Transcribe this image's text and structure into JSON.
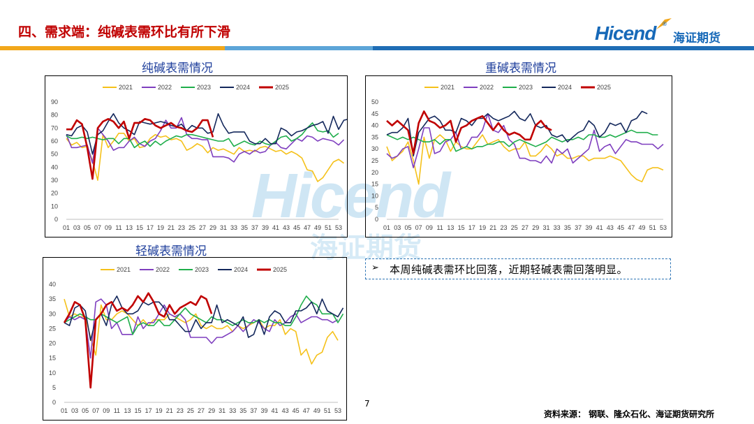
{
  "header": {
    "title": "四、需求端：纯碱表需环比有所下滑",
    "logo_en": "Hicend",
    "logo_reg": "®",
    "logo_cn": "海证期货"
  },
  "watermark": {
    "en": "Hicend",
    "cn": "海证期货",
    "reg": "®"
  },
  "colors": {
    "title_red": "#c00000",
    "brand_blue": "#1769b8",
    "band_orange": "#f2a71b",
    "band_blue": "#1f6db5",
    "band_lightblue": "#5da5d8",
    "y2021": "#f5c11a",
    "y2022": "#7f3fbf",
    "y2023": "#1fae4b",
    "y2024": "#14285c",
    "y2025": "#c00000"
  },
  "note": {
    "arrow": "➢",
    "text": "本周纯碱表需环比回落，近期轻碱表需回落明显。"
  },
  "page_number": "7",
  "source": "资料来源：  钢联、隆众石化、海证期货研究所",
  "chart_data": [
    {
      "id": "soda",
      "type": "line",
      "title": "纯碱表需情况",
      "ylim": [
        0,
        90
      ],
      "yticks": [
        0,
        10,
        20,
        30,
        40,
        50,
        60,
        70,
        80,
        90
      ],
      "xticks": [
        "01",
        "03",
        "05",
        "07",
        "09",
        "11",
        "13",
        "15",
        "17",
        "19",
        "21",
        "23",
        "25",
        "27",
        "29",
        "31",
        "33",
        "35",
        "37",
        "39",
        "41",
        "43",
        "45",
        "47",
        "49",
        "51",
        "53"
      ],
      "series": [
        {
          "name": "2021",
          "color": "#f5c11a",
          "values": [
            62,
            57,
            59,
            55,
            56,
            45,
            30,
            65,
            55,
            60,
            66,
            66,
            60,
            62,
            55,
            56,
            62,
            65,
            63,
            64,
            61,
            62,
            60,
            53,
            55,
            58,
            56,
            51,
            55,
            53,
            54,
            52,
            50,
            55,
            52,
            53,
            52,
            55,
            56,
            54,
            52,
            53,
            50,
            52,
            50,
            47,
            38,
            37,
            29,
            32,
            38,
            44,
            46,
            43
          ]
        },
        {
          "name": "2022",
          "color": "#7f3fbf",
          "values": [
            65,
            55,
            55,
            56,
            57,
            43,
            70,
            65,
            60,
            53,
            55,
            55,
            60,
            63,
            58,
            56,
            60,
            62,
            68,
            76,
            70,
            70,
            78,
            65,
            62,
            62,
            61,
            61,
            48,
            48,
            48,
            47,
            44,
            50,
            52,
            50,
            53,
            51,
            52,
            57,
            59,
            55,
            54,
            58,
            62,
            60,
            64,
            63,
            60,
            62,
            61,
            60,
            57,
            61
          ]
        },
        {
          "name": "2023",
          "color": "#1fae4b",
          "values": [
            64,
            62,
            62,
            63,
            62,
            63,
            62,
            61,
            62,
            62,
            58,
            62,
            62,
            55,
            58,
            60,
            56,
            60,
            57,
            60,
            62,
            64,
            63,
            65,
            65,
            64,
            63,
            62,
            61,
            60,
            60,
            62,
            56,
            58,
            60,
            58,
            57,
            60,
            58,
            57,
            60,
            63,
            64,
            60,
            62,
            65,
            70,
            74,
            68,
            67,
            68,
            63,
            66
          ]
        },
        {
          "name": "2024",
          "color": "#14285c",
          "values": [
            65,
            64,
            70,
            72,
            67,
            50,
            65,
            68,
            75,
            81,
            74,
            70,
            68,
            65,
            75,
            74,
            73,
            74,
            75,
            74,
            72,
            71,
            73,
            68,
            72,
            70,
            70,
            66,
            67,
            81,
            72,
            66,
            67,
            67,
            67,
            60,
            58,
            58,
            62,
            58,
            58,
            70,
            68,
            64,
            67,
            68,
            70,
            72,
            73,
            75,
            66,
            79,
            69,
            76,
            77
          ]
        },
        {
          "name": "2025",
          "color": "#c00000",
          "values": [
            69,
            69,
            76,
            73,
            55,
            31,
            70,
            75,
            77,
            75,
            70,
            75,
            62,
            74,
            74,
            77,
            76,
            72,
            70,
            72,
            74,
            71,
            70,
            68,
            67,
            70,
            76,
            76,
            63
          ]
        }
      ]
    },
    {
      "id": "heavy",
      "type": "line",
      "title": "重碱表需情况",
      "ylim": [
        0,
        50
      ],
      "yticks": [
        0,
        5,
        10,
        15,
        20,
        25,
        30,
        35,
        40,
        45,
        50
      ],
      "xticks": [
        "01",
        "03",
        "05",
        "07",
        "09",
        "11",
        "13",
        "15",
        "17",
        "19",
        "21",
        "23",
        "25",
        "27",
        "29",
        "31",
        "33",
        "35",
        "37",
        "39",
        "41",
        "43",
        "45",
        "47",
        "49",
        "51",
        "53"
      ],
      "series": [
        {
          "name": "2021",
          "color": "#f5c11a",
          "values": [
            31,
            25,
            27,
            29,
            33,
            25,
            15,
            35,
            26,
            34,
            36,
            34,
            29,
            33,
            31,
            30,
            30,
            33,
            36,
            32,
            33,
            34,
            31,
            29,
            30,
            30,
            33,
            27,
            27,
            29,
            32,
            30,
            27,
            28,
            26,
            26,
            27,
            27,
            25,
            26,
            26,
            26,
            27,
            26,
            25,
            22,
            19,
            17,
            16,
            21,
            22,
            22,
            21
          ]
        },
        {
          "name": "2022",
          "color": "#7f3fbf",
          "values": [
            28,
            26,
            27,
            30,
            31,
            22,
            30,
            39,
            39,
            28,
            29,
            33,
            34,
            37,
            30,
            31,
            35,
            35,
            38,
            45,
            38,
            37,
            40,
            34,
            32,
            26,
            26,
            25,
            25,
            24,
            27,
            24,
            30,
            28,
            30,
            24,
            26,
            28,
            30,
            38,
            29,
            31,
            32,
            28,
            31,
            34,
            33,
            33,
            32,
            32,
            32,
            30,
            32
          ]
        },
        {
          "name": "2023",
          "color": "#1fae4b",
          "values": [
            36,
            35,
            34,
            35,
            34,
            35,
            34,
            33,
            33,
            34,
            32,
            34,
            34,
            29,
            30,
            31,
            30,
            31,
            31,
            32,
            32,
            33,
            33,
            31,
            33,
            34,
            33,
            32,
            31,
            32,
            33,
            35,
            34,
            33,
            34,
            34,
            35,
            34,
            36,
            36,
            35,
            35,
            36,
            35,
            36,
            37,
            38,
            37,
            37,
            37,
            36,
            36
          ]
        },
        {
          "name": "2024",
          "color": "#14285c",
          "values": [
            36,
            37,
            37,
            39,
            43,
            27,
            37,
            40,
            43,
            44,
            42,
            38,
            38,
            37,
            43,
            42,
            40,
            43,
            43,
            45,
            43,
            42,
            43,
            44,
            46,
            43,
            42,
            45,
            40,
            39,
            40,
            36,
            35,
            36,
            33,
            35,
            37,
            38,
            42,
            40,
            35,
            37,
            41,
            40,
            41,
            37,
            42,
            43,
            46,
            45
          ]
        },
        {
          "name": "2025",
          "color": "#c00000",
          "values": [
            42,
            40,
            42,
            40,
            38,
            28,
            41,
            46,
            42,
            41,
            39,
            40,
            42,
            33,
            39,
            40,
            42,
            43,
            44,
            41,
            38,
            41,
            38,
            36,
            37,
            36,
            34,
            34,
            40,
            42,
            39,
            38
          ]
        }
      ]
    },
    {
      "id": "light",
      "type": "line",
      "title": "轻碱表需情况",
      "ylim": [
        0,
        40
      ],
      "yticks": [
        0,
        5,
        10,
        15,
        20,
        25,
        30,
        35,
        40
      ],
      "xticks": [
        "01",
        "03",
        "05",
        "07",
        "09",
        "11",
        "13",
        "15",
        "17",
        "19",
        "21",
        "23",
        "25",
        "27",
        "29",
        "31",
        "33",
        "35",
        "37",
        "39",
        "41",
        "43",
        "45",
        "47",
        "49",
        "51",
        "53"
      ],
      "series": [
        {
          "name": "2021",
          "color": "#f5c11a",
          "values": [
            35,
            29,
            30,
            29,
            29,
            22,
            16,
            33,
            28,
            28,
            30,
            31,
            30,
            28,
            26,
            28,
            26,
            28,
            28,
            28,
            30,
            29,
            28,
            27,
            28,
            30,
            26,
            25,
            26,
            25,
            25,
            26,
            24,
            26,
            25,
            26,
            27,
            28,
            25,
            26,
            26,
            28,
            23,
            25,
            24,
            16,
            18,
            13,
            16,
            17,
            22,
            24,
            21
          ]
        },
        {
          "name": "2022",
          "color": "#7f3fbf",
          "values": [
            27,
            29,
            28,
            29,
            28,
            15,
            34,
            35,
            33,
            25,
            27,
            23,
            23,
            23,
            29,
            25,
            27,
            27,
            30,
            33,
            30,
            29,
            30,
            28,
            22,
            22,
            22,
            22,
            20,
            22,
            22,
            23,
            24,
            26,
            24,
            26,
            28,
            27,
            25,
            24,
            28,
            26,
            27,
            29,
            30,
            27,
            28,
            29,
            29,
            28,
            28,
            27,
            28
          ]
        },
        {
          "name": "2023",
          "color": "#1fae4b",
          "values": [
            27,
            28,
            29,
            30,
            29,
            28,
            28,
            30,
            29,
            28,
            27,
            28,
            29,
            23,
            26,
            27,
            26,
            26,
            28,
            26,
            26,
            28,
            30,
            32,
            30,
            29,
            28,
            27,
            29,
            28,
            28,
            27,
            26,
            27,
            28,
            27,
            27,
            28,
            27,
            28,
            27,
            27,
            26,
            26,
            29,
            33,
            36,
            34,
            33,
            30,
            30,
            30,
            27,
            30
          ]
        },
        {
          "name": "2024",
          "color": "#14285c",
          "values": [
            27,
            26,
            32,
            33,
            31,
            21,
            28,
            30,
            26,
            33,
            36,
            32,
            30,
            30,
            31,
            34,
            33,
            34,
            34,
            32,
            28,
            28,
            26,
            24,
            24,
            28,
            25,
            27,
            27,
            33,
            27,
            28,
            27,
            26,
            29,
            22,
            23,
            28,
            23,
            29,
            31,
            30,
            27,
            27,
            31,
            31,
            32,
            34,
            30,
            35,
            31,
            30,
            29,
            32
          ]
        },
        {
          "name": "2025",
          "color": "#c00000",
          "values": [
            27,
            30,
            34,
            33,
            28,
            5,
            28,
            30,
            33,
            34,
            31,
            32,
            31,
            33,
            36,
            34,
            37,
            34,
            30,
            29,
            33,
            30,
            32,
            33,
            34,
            33,
            36,
            35,
            30
          ]
        }
      ]
    }
  ]
}
